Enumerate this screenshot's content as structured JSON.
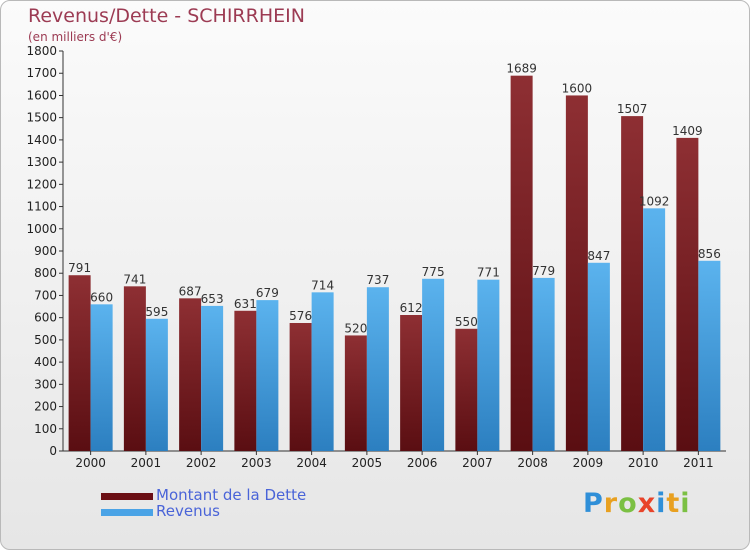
{
  "title": "Revenus/Dette - SCHIRRHEIN",
  "subtitle": "(en milliers d'€)",
  "logo": {
    "letters": [
      "P",
      "r",
      "o",
      "x",
      "i",
      "t",
      "i"
    ],
    "colors": [
      "#2f8fd8",
      "#e8a020",
      "#7bc043",
      "#e8442a",
      "#2f8fd8",
      "#e8a020",
      "#7bc043"
    ]
  },
  "colors": {
    "dette": "#7b2025",
    "revenus": "#4aa3e6"
  },
  "chart_data": {
    "type": "bar",
    "categories": [
      "2000",
      "2001",
      "2002",
      "2003",
      "2004",
      "2005",
      "2006",
      "2007",
      "2008",
      "2009",
      "2010",
      "2011"
    ],
    "series": [
      {
        "name": "Montant de la Dette",
        "values": [
          791,
          741,
          687,
          631,
          576,
          520,
          612,
          550,
          1689,
          1600,
          1507,
          1409
        ]
      },
      {
        "name": "Revenus",
        "values": [
          660,
          595,
          653,
          679,
          714,
          737,
          775,
          771,
          779,
          847,
          1092,
          856
        ]
      }
    ],
    "title": "Revenus/Dette - SCHIRRHEIN",
    "ylabel": "(en milliers d'€)",
    "ylim": [
      0,
      1800
    ],
    "ytick_step": 100,
    "grid": false,
    "legend_position": "bottom-left"
  }
}
